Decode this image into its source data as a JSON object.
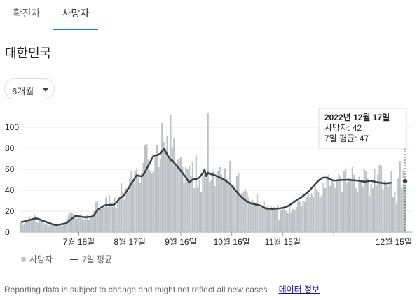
{
  "tabs": [
    {
      "label": "확진자",
      "active": false
    },
    {
      "label": "사망자",
      "active": true
    }
  ],
  "region": "대한민국",
  "range_selector": {
    "selected": "6개월"
  },
  "tooltip": {
    "date": "2022년 12월 17일",
    "deaths_line": "사망자: 42",
    "avg_line": "7일 평균: 47"
  },
  "legend": {
    "deaths": "사망자",
    "avg": "7일 평균"
  },
  "footer": {
    "disclaimer": "Reporting data is subject to change and might not reflect all new cases",
    "separator": "·",
    "link": "데이터 정보"
  },
  "colors": {
    "bar": "#bdc1c6",
    "line": "#3c4043",
    "active_tab": "#1a73e8",
    "link": "#1a0dab"
  },
  "chart_data": {
    "type": "bar",
    "y_ticks": [
      "0",
      "20",
      "40",
      "60",
      "80",
      "100"
    ],
    "x_ticks": [
      "7월 18일",
      "8월 17일",
      "9월 16일",
      "10월 16일",
      "11월 15일",
      "12월 15일"
    ],
    "ylim": [
      0,
      115
    ],
    "grid": true,
    "legend_position": "bottom-left",
    "series": [
      {
        "name": "사망자",
        "type": "bar",
        "values": [
          9,
          7,
          8,
          11,
          12,
          15,
          11,
          12,
          17,
          10,
          9,
          13,
          11,
          10,
          7,
          9,
          6,
          8,
          7,
          6,
          6,
          7,
          6,
          7,
          6,
          8,
          10,
          13,
          16,
          19,
          18,
          17,
          14,
          13,
          15,
          17,
          13,
          12,
          15,
          16,
          12,
          14,
          17,
          20,
          29,
          30,
          23,
          22,
          25,
          24,
          33,
          24,
          35,
          28,
          24,
          33,
          23,
          29,
          33,
          47,
          38,
          31,
          42,
          39,
          51,
          58,
          47,
          58,
          60,
          54,
          47,
          56,
          66,
          83,
          84,
          69,
          59,
          56,
          58,
          73,
          83,
          62,
          70,
          104,
          86,
          80,
          92,
          70,
          112,
          81,
          89,
          63,
          69,
          70,
          72,
          62,
          47,
          62,
          60,
          63,
          54,
          67,
          42,
          73,
          43,
          50,
          38,
          54,
          61,
          52,
          114,
          48,
          50,
          58,
          44,
          53,
          58,
          62,
          55,
          52,
          61,
          51,
          48,
          68,
          44,
          45,
          40,
          54,
          56,
          35,
          37,
          39,
          41,
          38,
          33,
          29,
          31,
          30,
          27,
          36,
          26,
          24,
          23,
          30,
          24,
          25,
          21,
          25,
          23,
          24,
          22,
          26,
          12,
          21,
          23,
          25,
          20,
          18,
          26,
          19,
          22,
          21,
          24,
          29,
          30,
          25,
          30,
          29,
          34,
          38,
          33,
          37,
          34,
          44,
          41,
          38,
          33,
          35,
          47,
          42,
          52,
          55,
          44,
          50,
          47,
          42,
          49,
          55,
          53,
          38,
          58,
          60,
          47,
          52,
          49,
          62,
          55,
          42,
          38,
          53,
          50,
          43,
          60,
          58,
          51,
          35,
          46,
          42,
          60,
          45,
          55,
          64,
          63,
          40,
          49,
          48,
          43,
          46,
          58,
          34,
          38,
          27,
          51,
          68,
          42,
          59,
          48
        ]
      },
      {
        "name": "7일 평균",
        "type": "line",
        "values": [
          9.5,
          9.9,
          10.3,
          10.8,
          11.2,
          11.6,
          12.0,
          12.5,
          12.9,
          13.2,
          12.7,
          12.1,
          11.4,
          10.8,
          10.2,
          9.6,
          9.1,
          8.5,
          7.9,
          7.3,
          6.8,
          6.8,
          7.0,
          7.3,
          7.6,
          7.9,
          8.1,
          9.0,
          10.4,
          11.7,
          13.0,
          14.3,
          15.4,
          15.3,
          15.1,
          14.8,
          14.6,
          14.2,
          14.3,
          14.4,
          14.5,
          14.6,
          14.9,
          16.2,
          18.7,
          21.2,
          22.3,
          23.4,
          24.5,
          25.4,
          25.8,
          25.9,
          25.9,
          26.0,
          26.1,
          26.7,
          27.9,
          30.1,
          32.3,
          33.4,
          34.3,
          36.2,
          38.7,
          41.3,
          43.9,
          46.6,
          48.9,
          51.6,
          54.3,
          54.0,
          53.6,
          53.2,
          54.7,
          57.7,
          60.7,
          63.7,
          66.8,
          69.9,
          72.9,
          73.2,
          73.6,
          74.0,
          74.9,
          77.1,
          79.3,
          76.8,
          74.1,
          71.4,
          68.8,
          68.4,
          66.5,
          64.6,
          62.5,
          60.7,
          58.6,
          56.5,
          54.4,
          52.3,
          49.8,
          47.4,
          48.8,
          50.2,
          50.5,
          50.7,
          51.3,
          52.1,
          54.4,
          56.3,
          59.6,
          53.4,
          56.8,
          55.6,
          55.2,
          54.9,
          54.4,
          53.6,
          52.9,
          52.1,
          51.4,
          50.4,
          49.5,
          48.4,
          47.3,
          46.1,
          44.3,
          42.3,
          40.4,
          38.4,
          36.6,
          34.7,
          33.2,
          31.7,
          30.3,
          29.2,
          28.4,
          27.6,
          27.2,
          26.8,
          26.4,
          26.1,
          25.7,
          25.3,
          24.4,
          23.4,
          22.6,
          22.4,
          22.3,
          22.3,
          22.2,
          22.3,
          22.4,
          22.6,
          22.7,
          22.9,
          23.2,
          23.6,
          24.0,
          24.9,
          25.8,
          26.8,
          27.9,
          29.1,
          30.3,
          31.4,
          32.2,
          33.3,
          34.6,
          35.9,
          37.3,
          38.7,
          40.1,
          42.0,
          43.9,
          45.7,
          47.4,
          49.1,
          50.4,
          51.6,
          52.0,
          52.1,
          52.2,
          51.2,
          50.5,
          49.8,
          49.2,
          49.3,
          49.5,
          49.6,
          49.7,
          49.8,
          49.8,
          49.9,
          50.0,
          49.9,
          49.8,
          49.6,
          49.5,
          49.3,
          49.2,
          49.0,
          48.7,
          48.4,
          48.1,
          48.3,
          48.5,
          48.8,
          49.0,
          48.6,
          48.2,
          47.8,
          47.4,
          47.2,
          47.0,
          46.8,
          46.7,
          46.6,
          46.8,
          47.0,
          47.3
        ]
      }
    ]
  }
}
